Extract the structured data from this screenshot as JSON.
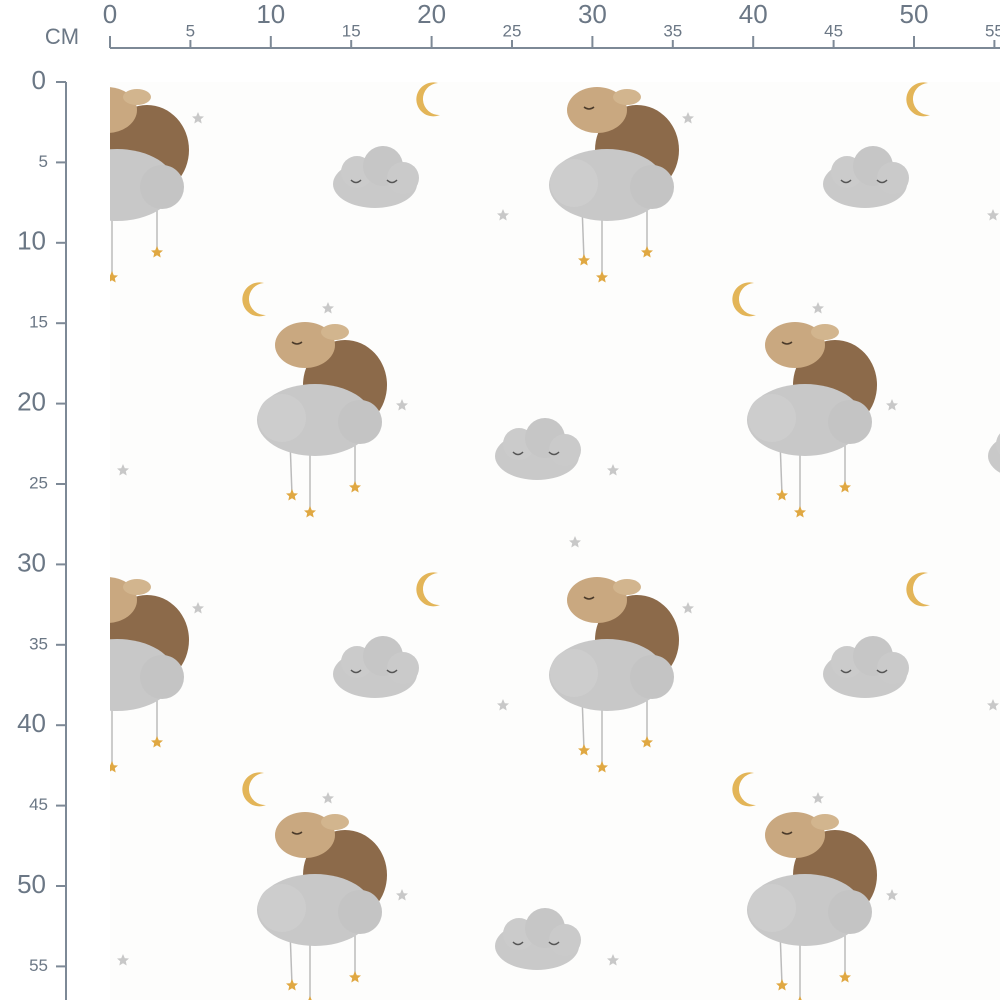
{
  "ruler": {
    "unit": "CM",
    "xticks": [
      0,
      5,
      10,
      15,
      20,
      25,
      30,
      35,
      40,
      45,
      50,
      55
    ],
    "yticks": [
      0,
      5,
      10,
      15,
      20,
      25,
      30,
      35,
      40,
      45,
      50,
      55
    ]
  }
}
